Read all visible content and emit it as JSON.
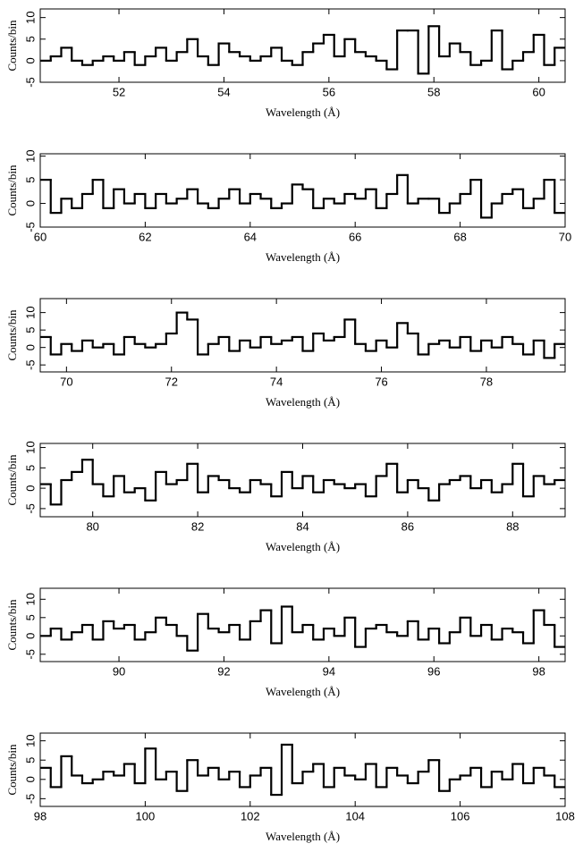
{
  "chart_data": [
    {
      "type": "histogram",
      "xlabel": "Wavelength (Å)",
      "ylabel": "Counts/bin",
      "xlim": [
        50.5,
        60.5
      ],
      "ylim": [
        -5,
        12
      ],
      "xticks": [
        52,
        54,
        56,
        58,
        60
      ],
      "yticks": [
        -5,
        0,
        5,
        10
      ],
      "color": "#000000",
      "bins": [
        50.5,
        50.7,
        50.9,
        51.1,
        51.3,
        51.5,
        51.7,
        51.9,
        52.1,
        52.3,
        52.5,
        52.7,
        52.9,
        53.1,
        53.3,
        53.5,
        53.7,
        53.9,
        54.1,
        54.3,
        54.5,
        54.7,
        54.9,
        55.1,
        55.3,
        55.5,
        55.7,
        55.9,
        56.1,
        56.3,
        56.5,
        56.7,
        56.9,
        57.1,
        57.3,
        57.5,
        57.7,
        57.9,
        58.1,
        58.3,
        58.5,
        58.7,
        58.9,
        59.1,
        59.3,
        59.5,
        59.7,
        59.9,
        60.1,
        60.3,
        60.5
      ],
      "values": [
        0,
        1,
        3,
        0,
        -1,
        0,
        1,
        0,
        2,
        -1,
        1,
        3,
        0,
        2,
        5,
        1,
        -1,
        4,
        2,
        1,
        0,
        1,
        3,
        0,
        -1,
        2,
        4,
        6,
        1,
        5,
        2,
        1,
        0,
        -2,
        7,
        7,
        -3,
        8,
        1,
        4,
        2,
        -1,
        0,
        7,
        -2,
        0,
        2,
        6,
        -1,
        3
      ]
    },
    {
      "type": "histogram",
      "xlabel": "Wavelength (Å)",
      "ylabel": "Counts/bin",
      "xlim": [
        60,
        70
      ],
      "ylim": [
        -5,
        10.5
      ],
      "xticks": [
        60,
        62,
        64,
        66,
        68,
        70
      ],
      "yticks": [
        -5,
        0,
        5,
        10
      ],
      "color": "#000000",
      "bins": [
        60,
        60.2,
        60.4,
        60.6,
        60.8,
        61,
        61.2,
        61.4,
        61.6,
        61.8,
        62,
        62.2,
        62.4,
        62.6,
        62.8,
        63,
        63.2,
        63.4,
        63.6,
        63.8,
        64,
        64.2,
        64.4,
        64.6,
        64.8,
        65,
        65.2,
        65.4,
        65.6,
        65.8,
        66,
        66.2,
        66.4,
        66.6,
        66.8,
        67,
        67.2,
        67.4,
        67.6,
        67.8,
        68,
        68.2,
        68.4,
        68.6,
        68.8,
        69,
        69.2,
        69.4,
        69.6,
        69.8,
        70
      ],
      "values": [
        5,
        -2,
        1,
        -1,
        2,
        5,
        -1,
        3,
        0,
        2,
        -1,
        2,
        0,
        1,
        3,
        0,
        -1,
        1,
        3,
        0,
        2,
        1,
        -1,
        0,
        4,
        3,
        -1,
        1,
        0,
        2,
        1,
        3,
        -1,
        2,
        6,
        0,
        1,
        1,
        -2,
        0,
        2,
        5,
        -3,
        0,
        2,
        3,
        -1,
        1,
        5,
        -2
      ]
    },
    {
      "type": "histogram",
      "xlabel": "Wavelength (Å)",
      "ylabel": "Counts/bin",
      "xlim": [
        69.5,
        79.5
      ],
      "ylim": [
        -7,
        14
      ],
      "xticks": [
        70,
        72,
        74,
        76,
        78
      ],
      "yticks": [
        -5,
        0,
        5,
        10
      ],
      "color": "#000000",
      "bins": [
        69.5,
        69.7,
        69.9,
        70.1,
        70.3,
        70.5,
        70.7,
        70.9,
        71.1,
        71.3,
        71.5,
        71.7,
        71.9,
        72.1,
        72.3,
        72.5,
        72.7,
        72.9,
        73.1,
        73.3,
        73.5,
        73.7,
        73.9,
        74.1,
        74.3,
        74.5,
        74.7,
        74.9,
        75.1,
        75.3,
        75.5,
        75.7,
        75.9,
        76.1,
        76.3,
        76.5,
        76.7,
        76.9,
        77.1,
        77.3,
        77.5,
        77.7,
        77.9,
        78.1,
        78.3,
        78.5,
        78.7,
        78.9,
        79.1,
        79.3,
        79.5
      ],
      "values": [
        3,
        -2,
        1,
        -1,
        2,
        0,
        1,
        -2,
        3,
        1,
        0,
        1,
        4,
        10,
        8,
        -2,
        1,
        3,
        -1,
        2,
        0,
        3,
        1,
        2,
        3,
        -1,
        4,
        2,
        3,
        8,
        1,
        -1,
        2,
        0,
        7,
        4,
        -2,
        1,
        2,
        0,
        3,
        -1,
        2,
        0,
        3,
        1,
        -2,
        2,
        -3,
        1
      ]
    },
    {
      "type": "histogram",
      "xlabel": "Wavelength (Å)",
      "ylabel": "Counts/bin",
      "xlim": [
        79,
        89
      ],
      "ylim": [
        -7,
        11
      ],
      "xticks": [
        80,
        82,
        84,
        86,
        88
      ],
      "yticks": [
        -5,
        0,
        5,
        10
      ],
      "color": "#000000",
      "bins": [
        79,
        79.2,
        79.4,
        79.6,
        79.8,
        80,
        80.2,
        80.4,
        80.6,
        80.8,
        81,
        81.2,
        81.4,
        81.6,
        81.8,
        82,
        82.2,
        82.4,
        82.6,
        82.8,
        83,
        83.2,
        83.4,
        83.6,
        83.8,
        84,
        84.2,
        84.4,
        84.6,
        84.8,
        85,
        85.2,
        85.4,
        85.6,
        85.8,
        86,
        86.2,
        86.4,
        86.6,
        86.8,
        87,
        87.2,
        87.4,
        87.6,
        87.8,
        88,
        88.2,
        88.4,
        88.6,
        88.8,
        89
      ],
      "values": [
        1,
        -4,
        2,
        4,
        7,
        1,
        -2,
        3,
        -1,
        0,
        -3,
        4,
        1,
        2,
        6,
        -1,
        3,
        2,
        0,
        -1,
        2,
        1,
        -2,
        4,
        0,
        3,
        -1,
        2,
        1,
        0,
        1,
        -2,
        3,
        6,
        -1,
        2,
        0,
        -3,
        1,
        2,
        3,
        0,
        2,
        -1,
        1,
        6,
        -2,
        3,
        1,
        2
      ]
    },
    {
      "type": "histogram",
      "xlabel": "Wavelength (Å)",
      "ylabel": "Counts/bin",
      "xlim": [
        88.5,
        98.5
      ],
      "ylim": [
        -7,
        13
      ],
      "xticks": [
        90,
        92,
        94,
        96,
        98
      ],
      "yticks": [
        -5,
        0,
        5,
        10
      ],
      "color": "#000000",
      "bins": [
        88.5,
        88.7,
        88.9,
        89.1,
        89.3,
        89.5,
        89.7,
        89.9,
        90.1,
        90.3,
        90.5,
        90.7,
        90.9,
        91.1,
        91.3,
        91.5,
        91.7,
        91.9,
        92.1,
        92.3,
        92.5,
        92.7,
        92.9,
        93.1,
        93.3,
        93.5,
        93.7,
        93.9,
        94.1,
        94.3,
        94.5,
        94.7,
        94.9,
        95.1,
        95.3,
        95.5,
        95.7,
        95.9,
        96.1,
        96.3,
        96.5,
        96.7,
        96.9,
        97.1,
        97.3,
        97.5,
        97.7,
        97.9,
        98.1,
        98.3,
        98.5
      ],
      "values": [
        0,
        2,
        -1,
        1,
        3,
        -1,
        4,
        2,
        3,
        -1,
        1,
        5,
        3,
        0,
        -4,
        6,
        2,
        1,
        3,
        -1,
        4,
        7,
        -2,
        8,
        1,
        3,
        -1,
        2,
        0,
        5,
        -3,
        2,
        3,
        1,
        0,
        4,
        -1,
        2,
        -2,
        1,
        5,
        0,
        3,
        -1,
        2,
        1,
        -2,
        7,
        3,
        -3
      ]
    },
    {
      "type": "histogram",
      "xlabel": "Wavelength (Å)",
      "ylabel": "Counts/bin",
      "xlim": [
        98,
        108
      ],
      "ylim": [
        -7,
        12
      ],
      "xticks": [
        98,
        100,
        102,
        104,
        106,
        108
      ],
      "yticks": [
        -5,
        0,
        5,
        10
      ],
      "color": "#000000",
      "bins": [
        98,
        98.2,
        98.4,
        98.6,
        98.8,
        99,
        99.2,
        99.4,
        99.6,
        99.8,
        100,
        100.2,
        100.4,
        100.6,
        100.8,
        101,
        101.2,
        101.4,
        101.6,
        101.8,
        102,
        102.2,
        102.4,
        102.6,
        102.8,
        103,
        103.2,
        103.4,
        103.6,
        103.8,
        104,
        104.2,
        104.4,
        104.6,
        104.8,
        105,
        105.2,
        105.4,
        105.6,
        105.8,
        106,
        106.2,
        106.4,
        106.6,
        106.8,
        107,
        107.2,
        107.4,
        107.6,
        107.8,
        108
      ],
      "values": [
        3,
        -2,
        6,
        1,
        -1,
        0,
        2,
        1,
        4,
        -1,
        8,
        0,
        2,
        -3,
        5,
        1,
        3,
        0,
        2,
        -2,
        1,
        3,
        -4,
        9,
        -1,
        2,
        4,
        -2,
        3,
        1,
        0,
        4,
        -2,
        3,
        1,
        -1,
        2,
        5,
        -3,
        0,
        1,
        3,
        -2,
        2,
        0,
        4,
        -1,
        3,
        1,
        -2
      ]
    }
  ]
}
